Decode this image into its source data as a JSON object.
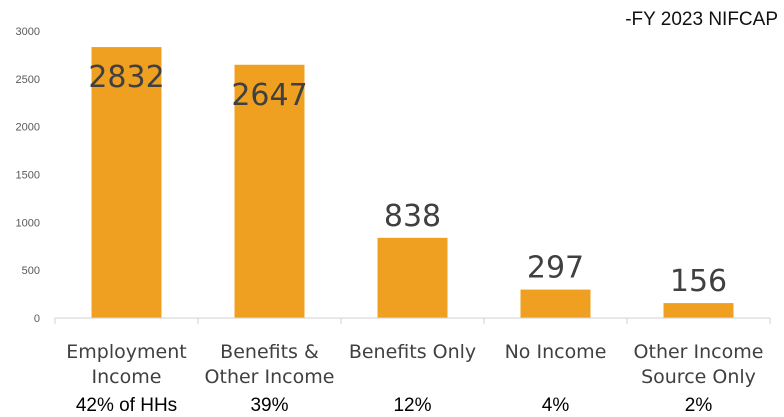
{
  "chart_data": {
    "type": "bar",
    "title": "-FY 2023 NIFCAP",
    "categories": [
      [
        "Employment",
        "Income"
      ],
      [
        "Benefits &",
        "Other Income"
      ],
      [
        "Benefits Only"
      ],
      [
        "No Income"
      ],
      [
        "Other Income",
        "Source Only"
      ]
    ],
    "values": [
      2832,
      2647,
      838,
      297,
      156
    ],
    "data_labels": [
      "2832",
      "2647",
      "838",
      "297",
      "156"
    ],
    "percent_labels": [
      "42% of HHs",
      "39%",
      "12%",
      "4%",
      "2%"
    ],
    "ylim": [
      0,
      3000
    ],
    "yticks": [
      0,
      500,
      1000,
      1500,
      2000,
      2500,
      3000
    ],
    "bar_color": "#F0A020",
    "grid": false,
    "xlabel": "",
    "ylabel": ""
  }
}
